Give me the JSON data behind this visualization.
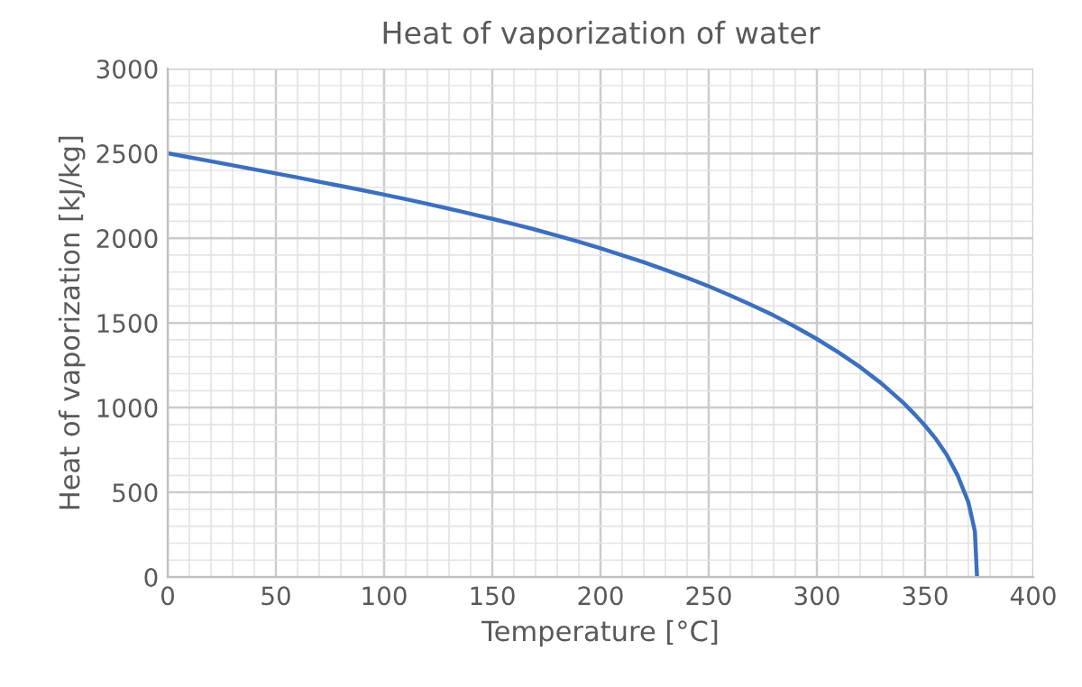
{
  "chart_data": {
    "type": "line",
    "title": "Heat of vaporization of water",
    "xlabel": "Temperature [°C]",
    "ylabel": "Heat of vaporization [kJ/kg]",
    "x": [
      0,
      10,
      20,
      30,
      40,
      50,
      60,
      70,
      80,
      90,
      100,
      110,
      120,
      130,
      140,
      150,
      160,
      170,
      180,
      190,
      200,
      210,
      220,
      230,
      240,
      250,
      260,
      270,
      280,
      290,
      300,
      310,
      320,
      330,
      340,
      345,
      350,
      355,
      360,
      365,
      370,
      373,
      374
    ],
    "series": [
      {
        "color": "#3c6fbe",
        "values": [
          2501,
          2477,
          2454,
          2430,
          2406,
          2382,
          2358,
          2333,
          2308,
          2283,
          2257,
          2230,
          2202,
          2174,
          2144,
          2114,
          2083,
          2050,
          2015,
          1979,
          1940,
          1899,
          1858,
          1813,
          1766,
          1716,
          1662,
          1605,
          1544,
          1477,
          1405,
          1326,
          1239,
          1141,
          1028,
          963,
          893,
          815,
          721,
          601,
          441,
          270,
          0
        ]
      }
    ],
    "xlim": [
      0,
      400
    ],
    "xticks": [
      0,
      50,
      100,
      150,
      200,
      250,
      300,
      350,
      400
    ],
    "ylim": [
      0,
      3000
    ],
    "yticks": [
      0,
      500,
      1000,
      1500,
      2000,
      2500,
      3000
    ],
    "grid": true,
    "legend": false,
    "marker": "none",
    "line_style": "solid"
  }
}
